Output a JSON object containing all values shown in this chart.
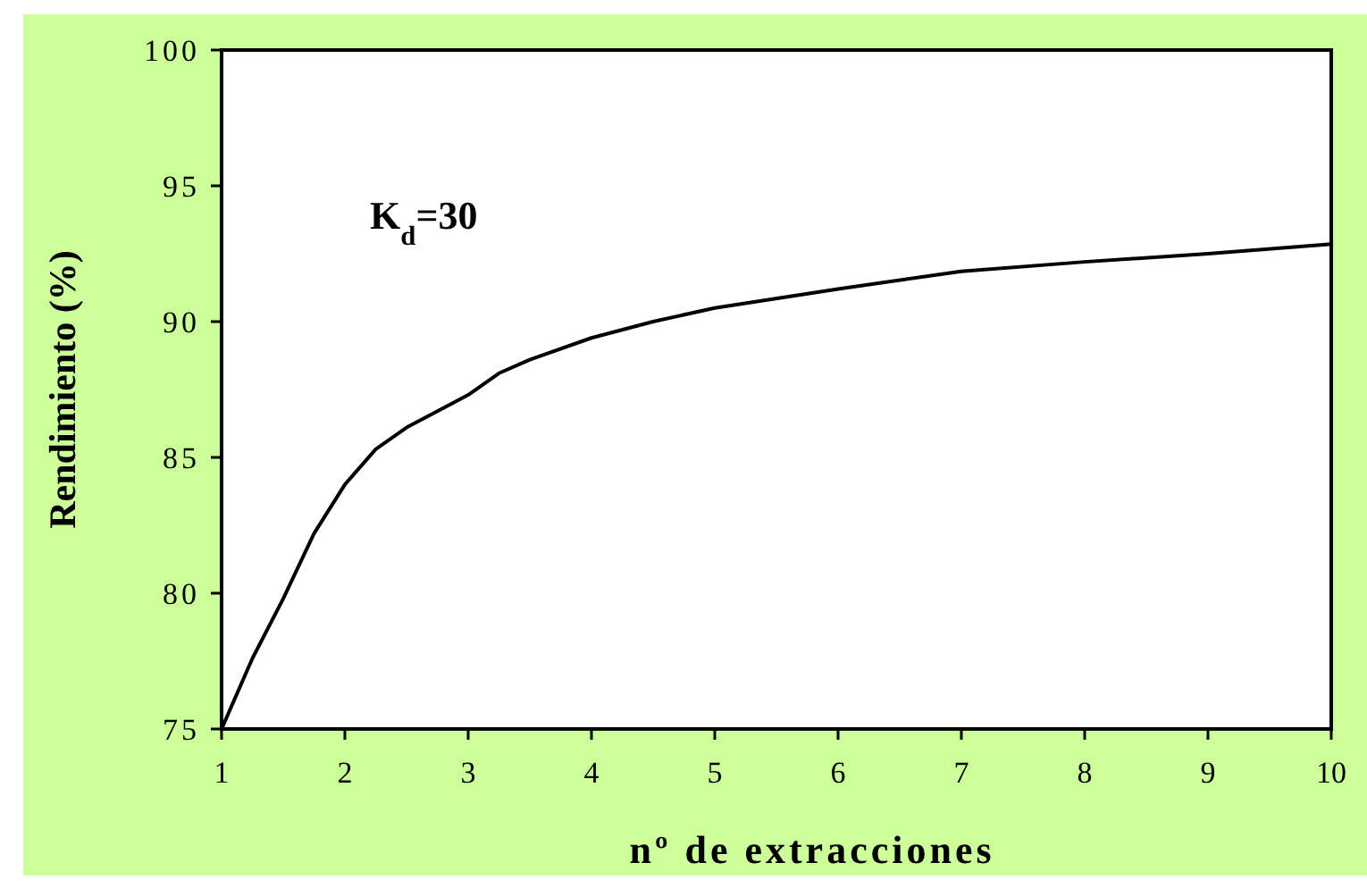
{
  "chart_data": {
    "type": "line",
    "xlabel": "nº de extracciones",
    "ylabel": "Rendimiento (%)",
    "annotations": [
      "K$_{d}$=30"
    ],
    "x": [
      1,
      1.25,
      1.5,
      1.75,
      2,
      2.25,
      2.5,
      3,
      3.25,
      3.5,
      4,
      4.5,
      5,
      6,
      7,
      8,
      9,
      10
    ],
    "series": [
      {
        "color": "#000000",
        "values": [
          75,
          77.6,
          79.8,
          82.2,
          84,
          85.3,
          86.1,
          87.3,
          88.1,
          88.6,
          89.4,
          90,
          90.5,
          91.2,
          91.85,
          92.2,
          92.5,
          92.85
        ]
      }
    ],
    "xlim": [
      1,
      10
    ],
    "xticks": [
      1,
      2,
      3,
      4,
      5,
      6,
      7,
      8,
      9,
      10
    ],
    "ylim": [
      75,
      100
    ],
    "yticks": [
      75,
      80,
      85,
      90,
      95,
      100
    ],
    "grid": false,
    "marker": "none",
    "line_style": "solid"
  }
}
